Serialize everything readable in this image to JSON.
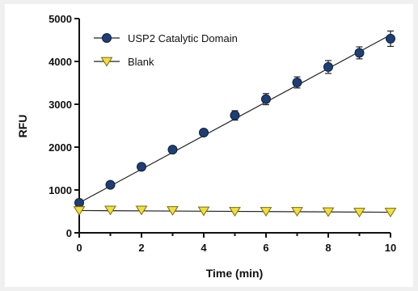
{
  "chart_data": {
    "type": "scatter",
    "xlabel": "Time (min)",
    "ylabel": "RFU",
    "xlim": [
      0,
      10
    ],
    "ylim": [
      0,
      5000
    ],
    "x_ticks": [
      "0",
      "2",
      "4",
      "6",
      "8",
      "10"
    ],
    "y_ticks": [
      "0",
      "1000",
      "2000",
      "3000",
      "4000",
      "5000"
    ],
    "grid": false,
    "legend_position": "top-left",
    "series": [
      {
        "name": "USP2 Catalytic Domain",
        "marker": "circle",
        "color": "#1f3f73",
        "x": [
          0,
          1,
          2,
          3,
          4,
          5,
          6,
          7,
          8,
          9,
          10
        ],
        "y": [
          700,
          1120,
          1540,
          1940,
          2340,
          2740,
          3120,
          3510,
          3870,
          4200,
          4530
        ],
        "error": [
          40,
          50,
          60,
          60,
          60,
          110,
          130,
          130,
          150,
          140,
          180
        ],
        "fit": [
          700,
          4620
        ]
      },
      {
        "name": "Blank",
        "marker": "triangle-down",
        "color": "#f2df3a",
        "x": [
          0,
          1,
          2,
          3,
          4,
          5,
          6,
          7,
          8,
          9,
          10
        ],
        "y": [
          520,
          530,
          530,
          520,
          510,
          500,
          500,
          500,
          490,
          480,
          480
        ],
        "error": [
          0,
          0,
          0,
          0,
          0,
          0,
          0,
          0,
          0,
          0,
          0
        ],
        "fit": [
          520,
          480
        ]
      }
    ]
  }
}
